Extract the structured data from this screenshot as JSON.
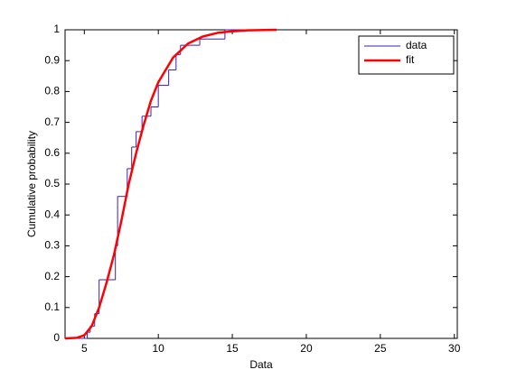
{
  "chart_data": {
    "type": "cdf",
    "xlabel": "Data",
    "ylabel": "Cumulative probability",
    "xlim": [
      3.7,
      30.2
    ],
    "ylim": [
      0,
      1
    ],
    "xticks": [
      5,
      10,
      15,
      20,
      25,
      30
    ],
    "yticks": [
      0,
      0.1,
      0.2,
      0.3,
      0.4,
      0.5,
      0.6,
      0.7,
      0.8,
      0.9,
      1
    ],
    "legend": "northeast",
    "series": [
      {
        "name": "data",
        "color": "#3a1fb8",
        "style": "stairs",
        "x": [
          3.7,
          5.2,
          5.4,
          5.7,
          6.0,
          7.1,
          7.25,
          7.9,
          8.2,
          8.5,
          8.9,
          9.5,
          10.0,
          10.7,
          11.2,
          11.5,
          12.8,
          14.5,
          18.0
        ],
        "values": [
          0,
          0.02,
          0.04,
          0.08,
          0.19,
          0.3,
          0.46,
          0.55,
          0.62,
          0.67,
          0.72,
          0.75,
          0.82,
          0.87,
          0.92,
          0.95,
          0.97,
          1,
          1
        ]
      },
      {
        "name": "fit",
        "color": "#ff0000",
        "style": "line",
        "x": [
          3.7,
          4.5,
          5,
          5.5,
          6,
          6.5,
          7,
          7.5,
          8,
          8.5,
          9,
          9.5,
          10,
          11,
          12,
          13,
          14,
          15,
          16,
          18
        ],
        "values": [
          0,
          0.002,
          0.01,
          0.04,
          0.1,
          0.18,
          0.27,
          0.38,
          0.5,
          0.6,
          0.69,
          0.77,
          0.83,
          0.91,
          0.955,
          0.978,
          0.99,
          0.995,
          0.998,
          1
        ]
      }
    ]
  }
}
